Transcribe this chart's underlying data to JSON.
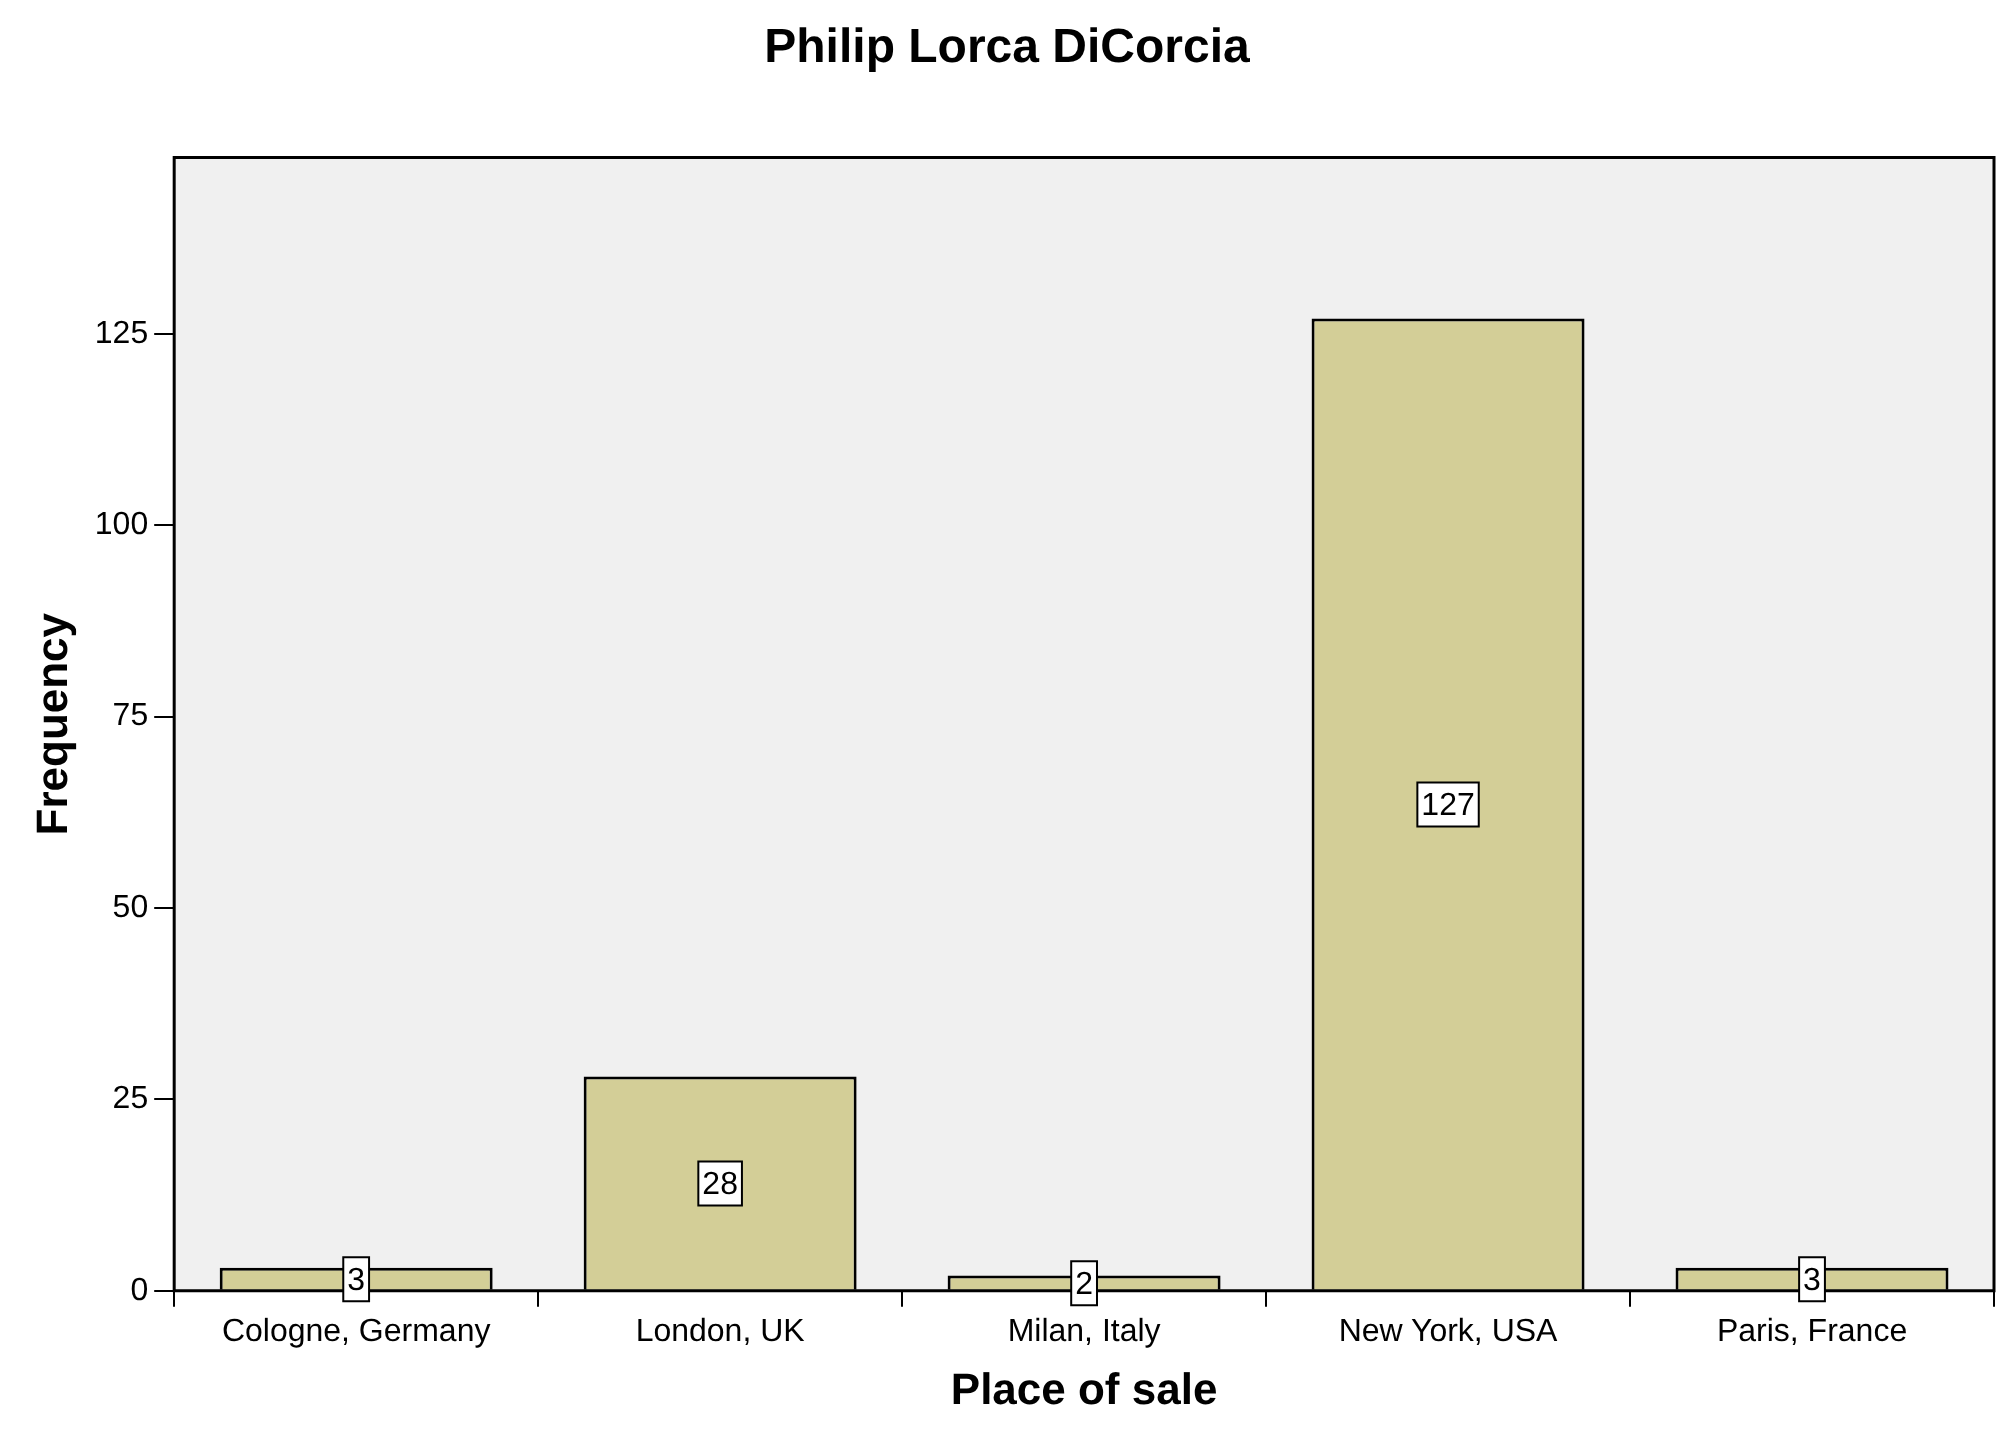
{
  "chart_data": {
    "type": "bar",
    "title": "Philip Lorca DiCorcia",
    "xlabel": "Place of sale",
    "ylabel": "Frequency",
    "categories": [
      "Cologne, Germany",
      "London, UK",
      "Milan, Italy",
      "New York, USA",
      "Paris, France"
    ],
    "values": [
      3,
      28,
      2,
      127,
      3
    ],
    "color": "#d3ce97",
    "ylim": [
      0,
      148
    ],
    "yticks": [
      0,
      25,
      50,
      75,
      100,
      125
    ],
    "grid": false,
    "data_labels": true
  }
}
